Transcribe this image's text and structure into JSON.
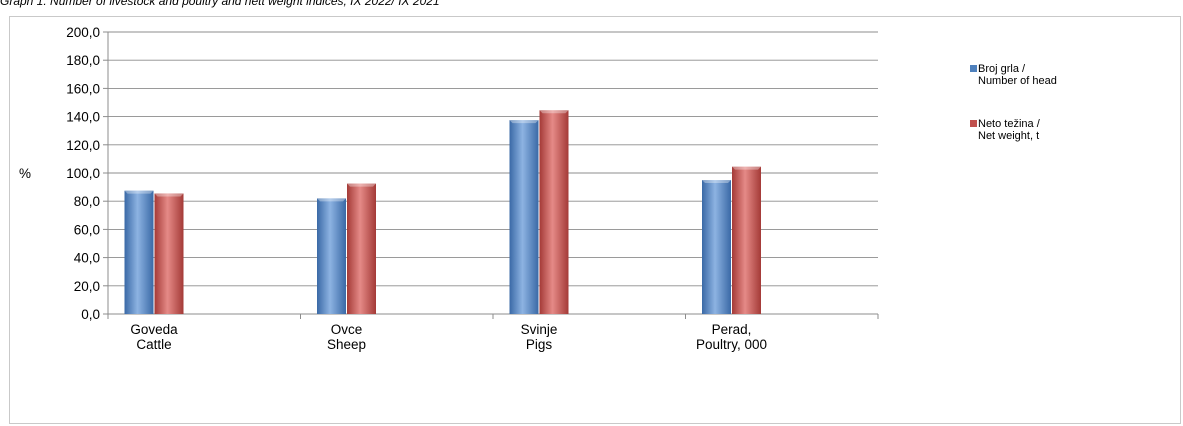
{
  "caption": "Graph 1. Number of livestock and poultry and nett weight indices, IX 2022/ IX 2021",
  "chart_data": {
    "type": "bar",
    "categories": [
      [
        "Goveda",
        "Cattle"
      ],
      [
        "Ovce",
        "Sheep"
      ],
      [
        "Svinje",
        "Pigs"
      ],
      [
        "Perad,",
        "Poultry, 000"
      ]
    ],
    "series": [
      {
        "name": [
          "Broj grla /",
          "Number of head"
        ],
        "values": [
          87.5,
          82.0,
          137.5,
          95.0
        ],
        "color": "#4f81bd"
      },
      {
        "name": [
          "Neto težina /",
          "Net weight, t"
        ],
        "values": [
          85.5,
          92.5,
          144.5,
          104.5
        ],
        "color": "#c0504d"
      }
    ],
    "ylabel": "%",
    "ylim": [
      0,
      200
    ],
    "yticks": [
      "0,0",
      "20,0",
      "40,0",
      "60,0",
      "80,0",
      "100,0",
      "120,0",
      "140,0",
      "160,0",
      "180,0",
      "200,0"
    ],
    "grid": true,
    "legend": "right"
  }
}
